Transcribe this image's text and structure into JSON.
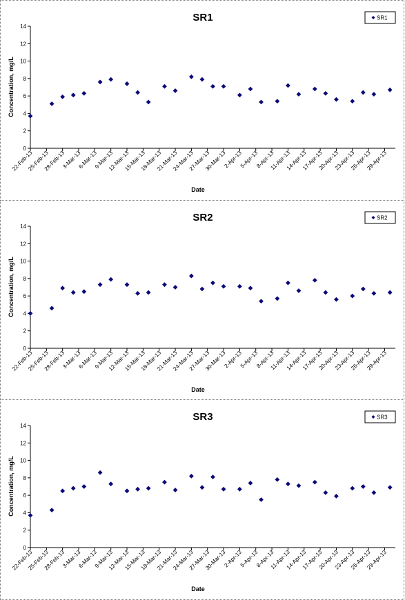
{
  "colors": {
    "marker": "#0a0a78",
    "axis": "#000000"
  },
  "chart_data": [
    {
      "type": "scatter",
      "title": "SR1",
      "xlabel": "Date",
      "ylabel": "Concentration, mg/L",
      "ylim": [
        0,
        14
      ],
      "yticks": [
        "0",
        "2",
        "4",
        "6",
        "8",
        "10",
        "12",
        "14"
      ],
      "xlim": [
        "2013-02-22",
        "2013-05-01"
      ],
      "xticks": [
        "22-Feb-13",
        "25-Feb-13",
        "28-Feb-13",
        "3-Mar-13",
        "6-Mar-13",
        "9-Mar-13",
        "12-Mar-13",
        "15-Mar-13",
        "18-Mar-13",
        "21-Mar-13",
        "24-Mar-13",
        "27-Mar-13",
        "30-Mar-13",
        "2-Apr-13",
        "5-Apr-13",
        "8-Apr-13",
        "11-Apr-13",
        "14-Apr-13",
        "17-Apr-13",
        "20-Apr-13",
        "23-Apr-13",
        "26-Apr-13",
        "29-Apr-13"
      ],
      "legend_position": "top-right",
      "grid": false,
      "series": [
        {
          "name": "SR1",
          "x": [
            "2013-02-22",
            "2013-02-26",
            "2013-02-28",
            "2013-03-02",
            "2013-03-04",
            "2013-03-07",
            "2013-03-09",
            "2013-03-12",
            "2013-03-14",
            "2013-03-16",
            "2013-03-19",
            "2013-03-21",
            "2013-03-24",
            "2013-03-26",
            "2013-03-28",
            "2013-03-30",
            "2013-04-02",
            "2013-04-04",
            "2013-04-06",
            "2013-04-09",
            "2013-04-11",
            "2013-04-13",
            "2013-04-16",
            "2013-04-18",
            "2013-04-20",
            "2013-04-23",
            "2013-04-25",
            "2013-04-27",
            "2013-04-30"
          ],
          "y": [
            3.7,
            5.1,
            5.9,
            6.1,
            6.3,
            7.6,
            7.9,
            7.4,
            6.4,
            5.3,
            7.1,
            6.6,
            8.2,
            7.9,
            7.1,
            7.1,
            6.1,
            6.8,
            5.3,
            5.4,
            7.2,
            6.2,
            6.8,
            6.3,
            5.6,
            5.4,
            6.4,
            6.2,
            6.7
          ]
        }
      ]
    },
    {
      "type": "scatter",
      "title": "SR2",
      "xlabel": "Date",
      "ylabel": "Concentration, mg/L",
      "ylim": [
        0,
        14
      ],
      "yticks": [
        "0",
        "2",
        "4",
        "6",
        "8",
        "10",
        "12",
        "14"
      ],
      "xlim": [
        "2013-02-22",
        "2013-05-01"
      ],
      "xticks": [
        "22-Feb-13",
        "25-Feb-13",
        "28-Feb-13",
        "3-Mar-13",
        "6-Mar-13",
        "9-Mar-13",
        "12-Mar-13",
        "15-Mar-13",
        "18-Mar-13",
        "21-Mar-13",
        "24-Mar-13",
        "27-Mar-13",
        "30-Mar-13",
        "2-Apr-13",
        "5-Apr-13",
        "8-Apr-13",
        "11-Apr-13",
        "14-Apr-13",
        "17-Apr-13",
        "20-Apr-13",
        "23-Apr-13",
        "26-Apr-13",
        "29-Apr-13"
      ],
      "legend_position": "top-right",
      "grid": false,
      "series": [
        {
          "name": "SR2",
          "x": [
            "2013-02-22",
            "2013-02-26",
            "2013-02-28",
            "2013-03-02",
            "2013-03-04",
            "2013-03-07",
            "2013-03-09",
            "2013-03-12",
            "2013-03-14",
            "2013-03-16",
            "2013-03-19",
            "2013-03-21",
            "2013-03-24",
            "2013-03-26",
            "2013-03-28",
            "2013-03-30",
            "2013-04-02",
            "2013-04-04",
            "2013-04-06",
            "2013-04-09",
            "2013-04-11",
            "2013-04-13",
            "2013-04-16",
            "2013-04-18",
            "2013-04-20",
            "2013-04-23",
            "2013-04-25",
            "2013-04-27",
            "2013-04-30"
          ],
          "y": [
            4.0,
            4.6,
            6.9,
            6.4,
            6.5,
            7.3,
            7.9,
            7.3,
            6.3,
            6.4,
            7.3,
            7.0,
            8.3,
            6.8,
            7.5,
            7.1,
            7.1,
            6.9,
            5.4,
            5.7,
            7.5,
            6.6,
            7.8,
            6.4,
            5.6,
            6.0,
            6.8,
            6.3,
            6.4
          ]
        }
      ]
    },
    {
      "type": "scatter",
      "title": "SR3",
      "xlabel": "Date",
      "ylabel": "Concentration, mg/L",
      "ylim": [
        0,
        14
      ],
      "yticks": [
        "0",
        "2",
        "4",
        "6",
        "8",
        "10",
        "12",
        "14"
      ],
      "xlim": [
        "2013-02-22",
        "2013-05-01"
      ],
      "xticks": [
        "22-Feb-13",
        "25-Feb-13",
        "28-Feb-13",
        "3-Mar-13",
        "6-Mar-13",
        "9-Mar-13",
        "12-Mar-13",
        "15-Mar-13",
        "18-Mar-13",
        "21-Mar-13",
        "24-Mar-13",
        "27-Mar-13",
        "30-Mar-13",
        "2-Apr-13",
        "5-Apr-13",
        "8-Apr-13",
        "11-Apr-13",
        "14-Apr-13",
        "17-Apr-13",
        "20-Apr-13",
        "23-Apr-13",
        "26-Apr-13",
        "29-Apr-13"
      ],
      "legend_position": "top-right",
      "grid": false,
      "series": [
        {
          "name": "SR3",
          "x": [
            "2013-02-22",
            "2013-02-26",
            "2013-02-28",
            "2013-03-02",
            "2013-03-04",
            "2013-03-07",
            "2013-03-09",
            "2013-03-12",
            "2013-03-14",
            "2013-03-16",
            "2013-03-19",
            "2013-03-21",
            "2013-03-24",
            "2013-03-26",
            "2013-03-28",
            "2013-03-30",
            "2013-04-02",
            "2013-04-04",
            "2013-04-06",
            "2013-04-09",
            "2013-04-11",
            "2013-04-13",
            "2013-04-16",
            "2013-04-18",
            "2013-04-20",
            "2013-04-23",
            "2013-04-25",
            "2013-04-27",
            "2013-04-30"
          ],
          "y": [
            3.7,
            4.3,
            6.5,
            6.8,
            7.0,
            8.6,
            7.3,
            6.5,
            6.7,
            6.8,
            7.5,
            6.6,
            8.2,
            6.9,
            8.1,
            6.7,
            6.7,
            7.4,
            5.5,
            7.8,
            7.3,
            7.1,
            7.5,
            6.3,
            5.9,
            6.8,
            7.0,
            6.3,
            6.9
          ]
        }
      ]
    }
  ]
}
